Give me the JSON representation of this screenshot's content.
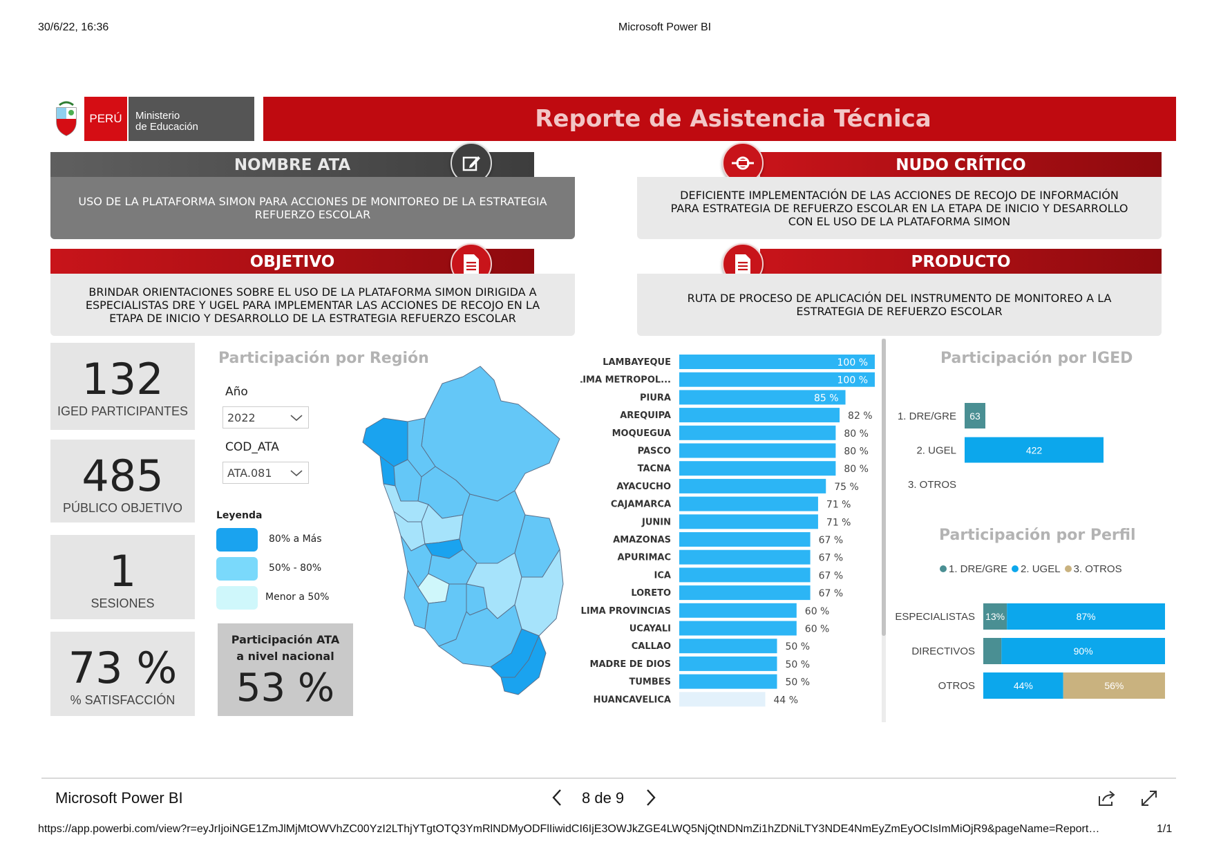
{
  "print_header": {
    "datetime": "30/6/22, 16:36",
    "title": "Microsoft Power BI"
  },
  "banner": {
    "peru": "PERÚ",
    "ministry_line1": "Ministerio",
    "ministry_line2": "de Educación",
    "report_title": "Reporte de Asistencia Técnica"
  },
  "sections": {
    "nombre_ata": {
      "title": "NOMBRE ATA",
      "body": "USO DE LA PLATAFORMA SIMON PARA ACCIONES DE MONITOREO DE LA ESTRATEGIA REFUERZO ESCOLAR",
      "icon": "edit-icon"
    },
    "nudo_critico": {
      "title": "NUDO CRÍTICO",
      "body": "DEFICIENTE IMPLEMENTACIÓN DE LAS ACCIONES DE RECOJO DE INFORMACIÓN PARA ESTRATEGIA DE REFUERZO ESCOLAR EN LA ETAPA DE INICIO Y DESARROLLO CON EL USO DE LA PLATAFORMA SIMON",
      "icon": "broken-link-icon"
    },
    "objetivo": {
      "title": "OBJETIVO",
      "body": "BRINDAR ORIENTACIONES SOBRE EL USO DE LA PLATAFORMA SIMON DIRIGIDA A ESPECIALISTAS DRE Y UGEL PARA IMPLEMENTAR LAS ACCIONES DE RECOJO EN LA ETAPA DE INICIO Y DESARROLLO DE LA ESTRATEGIA REFUERZO ESCOLAR",
      "icon": "document-icon"
    },
    "producto": {
      "title": "PRODUCTO",
      "body": "RUTA DE PROCESO DE APLICACIÓN DEL INSTRUMENTO DE MONITOREO A LA ESTRATEGIA DE REFUERZO ESCOLAR",
      "icon": "document-icon"
    }
  },
  "kpis": [
    {
      "value": "132",
      "label": "IGED PARTICIPANTES"
    },
    {
      "value": "485",
      "label": "PÚBLICO OBJETIVO"
    },
    {
      "value": "1",
      "label": "SESIONES"
    },
    {
      "value": "73 %",
      "label": "% SATISFACCIÓN"
    }
  ],
  "region": {
    "title": "Participación por Región",
    "year_label": "Año",
    "year_value": "2022",
    "codata_label": "COD_ATA",
    "codata_value": "ATA.081",
    "legend_title": "Leyenda",
    "legend": [
      {
        "label": "80% a Más",
        "color": "#1aa3ef"
      },
      {
        "label": "50% - 80%",
        "color": "#7ad9fb"
      },
      {
        "label": "Menor  a 50%",
        "color": "#cff7fb"
      }
    ],
    "national_title_1": "Participación ATA",
    "national_title_2": "a nivel nacional",
    "national_value": "53 %"
  },
  "chart_data": [
    {
      "type": "bar",
      "orientation": "horizontal",
      "categories": [
        "LAMBAYEQUE",
        "LIMA METROPOL...",
        "PIURA",
        "AREQUIPA",
        "MOQUEGUA",
        "PASCO",
        "TACNA",
        "AYACUCHO",
        "CAJAMARCA",
        "JUNIN",
        "AMAZONAS",
        "APURIMAC",
        "ICA",
        "LORETO",
        "LIMA PROVINCIAS",
        "UCAYALI",
        "CALLAO",
        "MADRE DE DIOS",
        "TUMBES",
        "HUANCAVELICA"
      ],
      "values": [
        100,
        100,
        85,
        82,
        80,
        80,
        80,
        75,
        71,
        71,
        67,
        67,
        67,
        67,
        60,
        60,
        50,
        50,
        50,
        44
      ],
      "value_labels": [
        "100 %",
        "100 %",
        "85 %",
        "82 %",
        "80 %",
        "80 %",
        "80 %",
        "75 %",
        "71 %",
        "71 %",
        "67 %",
        "67 %",
        "67 %",
        "67 %",
        "60 %",
        "60 %",
        "50 %",
        "50 %",
        "50 %",
        "44 %"
      ],
      "color": "#2cb5f5",
      "low_color": "#e3f1fb",
      "xlim": [
        0,
        100
      ]
    },
    {
      "type": "bar",
      "orientation": "horizontal",
      "title": "Participación por IGED",
      "categories": [
        "1. DRE/GRE",
        "2. UGEL",
        "3. OTROS"
      ],
      "values": [
        63,
        422,
        0
      ],
      "value_labels": [
        "63",
        "422",
        ""
      ],
      "colors": [
        "#4a8f93",
        "#0ca7ec",
        "#c9b27f"
      ]
    },
    {
      "type": "bar",
      "orientation": "horizontal",
      "stacked": "100%",
      "title": "Participación por Perfil",
      "categories": [
        "ESPECIALISTAS",
        "DIRECTIVOS",
        "OTROS"
      ],
      "series": [
        {
          "name": "1. DRE/GRE",
          "color": "#4a8f93",
          "values": [
            13,
            10,
            0
          ],
          "labels": [
            "13%",
            "",
            ""
          ]
        },
        {
          "name": "2. UGEL",
          "color": "#0ca7ec",
          "values": [
            87,
            90,
            44
          ],
          "labels": [
            "87%",
            "90%",
            "44%"
          ]
        },
        {
          "name": "3. OTROS",
          "color": "#c9b27f",
          "values": [
            0,
            0,
            56
          ],
          "labels": [
            "",
            "",
            "56%"
          ]
        }
      ]
    }
  ],
  "footer": {
    "app_title": "Microsoft Power BI",
    "page_indicator": "8 de 9",
    "url": "https://app.powerbi.com/view?r=eyJrIjoiNGE1ZmJlMjMtOWVhZC00YzI2LThjYTgtOTQ3YmRlNDMyODFlIiwidCI6IjE3OWJkZGE4LWQ5NjQtNDNmZi1hZDNiLTY3NDE4NmEyZmEyOCIsImMiOjR9&pageName=Report…",
    "page_count": "1/1"
  }
}
